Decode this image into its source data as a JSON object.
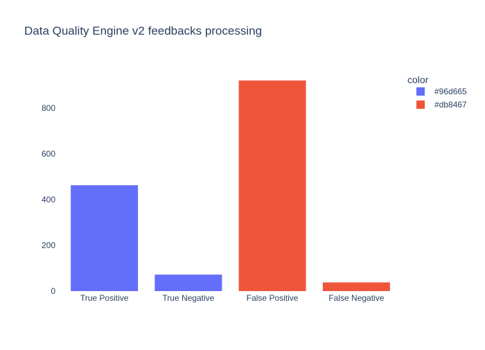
{
  "chart_data": {
    "type": "bar",
    "title": "Data Quality Engine v2 feedbacks processing",
    "xlabel": "",
    "ylabel": "",
    "categories": [
      "True Positive",
      "True Negative",
      "False Positive",
      "False Negative"
    ],
    "values": [
      463,
      72,
      921,
      38
    ],
    "bar_series": [
      "#96d665",
      "#96d665",
      "#db8467",
      "#db8467"
    ],
    "ylim": [
      0,
      970
    ],
    "yticks": [
      0,
      200,
      400,
      600,
      800
    ],
    "grid": true,
    "legend": {
      "title": "color",
      "placement": "top-right",
      "items": [
        {
          "label": "#96d665",
          "color": "#636efa"
        },
        {
          "label": "#db8467",
          "color": "#ef553b"
        }
      ]
    }
  }
}
